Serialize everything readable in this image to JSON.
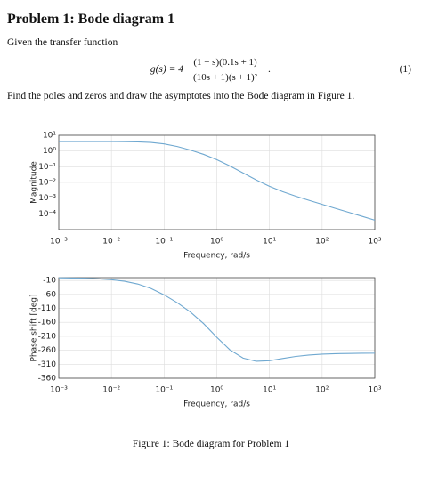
{
  "title": "Problem 1: Bode diagram 1",
  "intro": "Given the transfer function",
  "equation": {
    "lhs": "g(s) = 4",
    "numerator": "(1 − s)(0.1s + 1)",
    "denominator": "(10s + 1)(s + 1)²",
    "punct": ".",
    "number": "(1)"
  },
  "instruction": "Find the poles and zeros and draw the asymptotes into the Bode diagram in Figure 1.",
  "caption": "Figure 1: Bode diagram for Problem 1",
  "chart_data": [
    {
      "type": "line",
      "xlabel": "Frequency, rad/s",
      "ylabel": "Magnitude",
      "log_x": true,
      "log_y": true,
      "grid": true,
      "x": [
        0.001,
        0.001778,
        0.003162,
        0.005623,
        0.01,
        0.01778,
        0.03162,
        0.05623,
        0.1,
        0.1778,
        0.3162,
        0.5623,
        1,
        1.778,
        3.162,
        5.623,
        10,
        17.78,
        31.62,
        56.23,
        100,
        177.8,
        316.2,
        562.3,
        1000
      ],
      "series": [
        {
          "color": "#6fa8d0",
          "values": [
            4.0,
            3.999,
            3.998,
            3.994,
            3.98,
            3.938,
            3.812,
            3.481,
            2.814,
            1.93,
            1.15,
            0.6115,
            0.2828,
            0.1118,
            0.03998,
            0.01429,
            0.005629,
            0.002577,
            0.001326,
            0.0007225,
            0.000402,
            0.0002253,
            0.0001266,
            7.115e-05,
            4e-05
          ]
        }
      ],
      "xlim": [
        0.001,
        1000
      ],
      "ylim": [
        1e-05,
        10
      ],
      "xticks": [
        {
          "value": 0.001,
          "label": "10⁻³"
        },
        {
          "value": 0.01,
          "label": "10⁻²"
        },
        {
          "value": 0.1,
          "label": "10⁻¹"
        },
        {
          "value": 1,
          "label": "10⁰"
        },
        {
          "value": 10,
          "label": "10¹"
        },
        {
          "value": 100,
          "label": "10²"
        },
        {
          "value": 1000,
          "label": "10³"
        }
      ],
      "yticks": [
        {
          "value": 10,
          "label": "10¹"
        },
        {
          "value": 1,
          "label": "10⁰"
        },
        {
          "value": 0.1,
          "label": "10⁻¹"
        },
        {
          "value": 0.01,
          "label": "10⁻²"
        },
        {
          "value": 0.001,
          "label": "10⁻³"
        },
        {
          "value": 0.0001,
          "label": "10⁻⁴"
        }
      ]
    },
    {
      "type": "line",
      "xlabel": "Frequency, rad/s",
      "ylabel": "Phase shift [deg]",
      "log_x": true,
      "log_y": false,
      "grid": true,
      "x": [
        0.001,
        0.001778,
        0.003162,
        0.005623,
        0.01,
        0.01778,
        0.03162,
        0.05623,
        0.1,
        0.1778,
        0.3162,
        0.5623,
        1,
        1.778,
        3.162,
        5.623,
        10,
        17.78,
        31.62,
        56.23,
        100,
        177.8,
        316.2,
        562.3,
        1000
      ],
      "series": [
        {
          "color": "#6fa8d0",
          "values": [
            -0.74,
            -1.31,
            -2.34,
            -4.15,
            -7.37,
            -13.03,
            -22.8,
            -38.68,
            -61.56,
            -89.87,
            -123.29,
            -164.75,
            -213.58,
            -258.65,
            -287.99,
            -299.39,
            -297.29,
            -289.37,
            -281.94,
            -276.92,
            -273.93,
            -272.22,
            -271.25,
            -270.7,
            -270.39
          ]
        }
      ],
      "xlim": [
        0.001,
        1000
      ],
      "ylim": [
        -360,
        0
      ],
      "xticks": [
        {
          "value": 0.001,
          "label": "10⁻³"
        },
        {
          "value": 0.01,
          "label": "10⁻²"
        },
        {
          "value": 0.1,
          "label": "10⁻¹"
        },
        {
          "value": 1,
          "label": "10⁰"
        },
        {
          "value": 10,
          "label": "10¹"
        },
        {
          "value": 100,
          "label": "10²"
        },
        {
          "value": 1000,
          "label": "10³"
        }
      ],
      "yticks": [
        -10,
        -60,
        -110,
        -160,
        -210,
        -260,
        -310,
        -360
      ]
    }
  ]
}
